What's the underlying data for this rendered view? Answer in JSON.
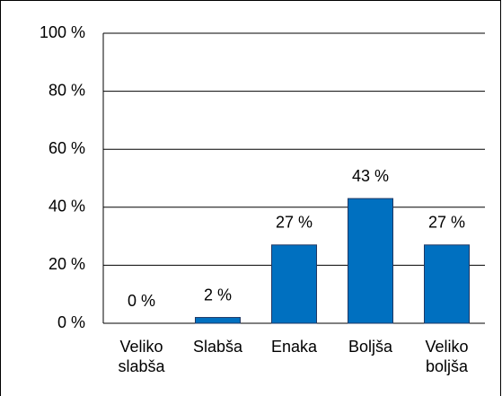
{
  "chart_data": {
    "type": "bar",
    "categories": [
      "Veliko slabša",
      "Slabša",
      "Enaka",
      "Boljša",
      "Veliko boljša"
    ],
    "values": [
      0,
      2,
      27,
      43,
      27
    ],
    "value_labels": [
      "0 %",
      "2 %",
      "27 %",
      "43 %",
      "27 %"
    ],
    "color": "#0070c0",
    "ylim": [
      0,
      100
    ],
    "yticks": [
      {
        "value": 0,
        "label": "0 %"
      },
      {
        "value": 20,
        "label": "20 %"
      },
      {
        "value": 40,
        "label": "40 %"
      },
      {
        "value": 60,
        "label": "60 %"
      },
      {
        "value": 80,
        "label": "80 %"
      },
      {
        "value": 100,
        "label": "100 %"
      }
    ],
    "grid": true
  }
}
